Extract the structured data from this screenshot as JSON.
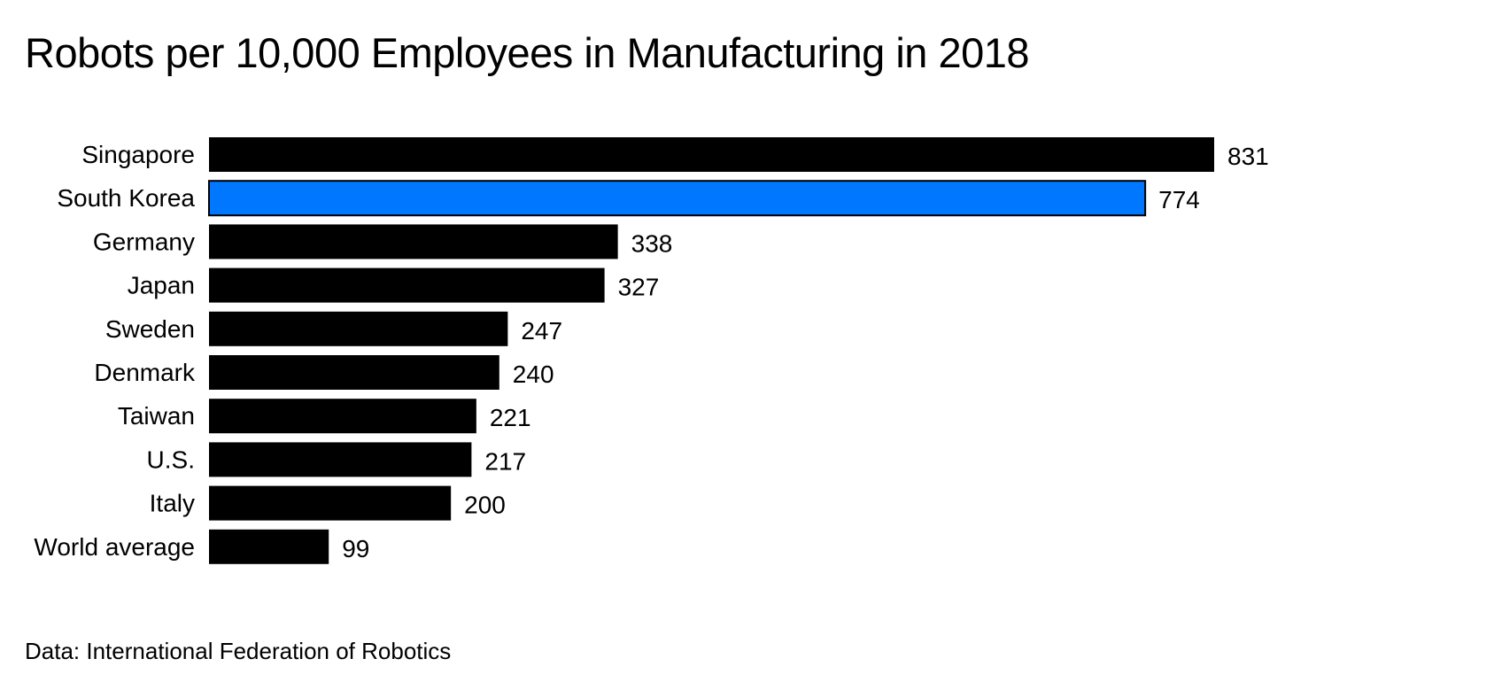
{
  "chart_data": {
    "type": "bar",
    "orientation": "horizontal",
    "title": "Robots per 10,000 Employees in Manufacturing in 2018",
    "source": "Data: International Federation of Robotics",
    "categories": [
      "Singapore",
      "South Korea",
      "Germany",
      "Japan",
      "Sweden",
      "Denmark",
      "Taiwan",
      "U.S.",
      "Italy",
      "World average"
    ],
    "values": [
      831,
      774,
      338,
      327,
      247,
      240,
      221,
      217,
      200,
      99
    ],
    "value_labels": [
      "831",
      "774",
      "338",
      "327",
      "247",
      "240",
      "221",
      "217",
      "200",
      "99"
    ],
    "highlight_category": "South Korea",
    "colors": {
      "bar": "#000000",
      "highlight": "#0077ff",
      "text": "#000000",
      "background": "#ffffff"
    },
    "xlim": [
      0,
      831
    ],
    "grid": false,
    "legend": "none",
    "axes_visible": false
  }
}
